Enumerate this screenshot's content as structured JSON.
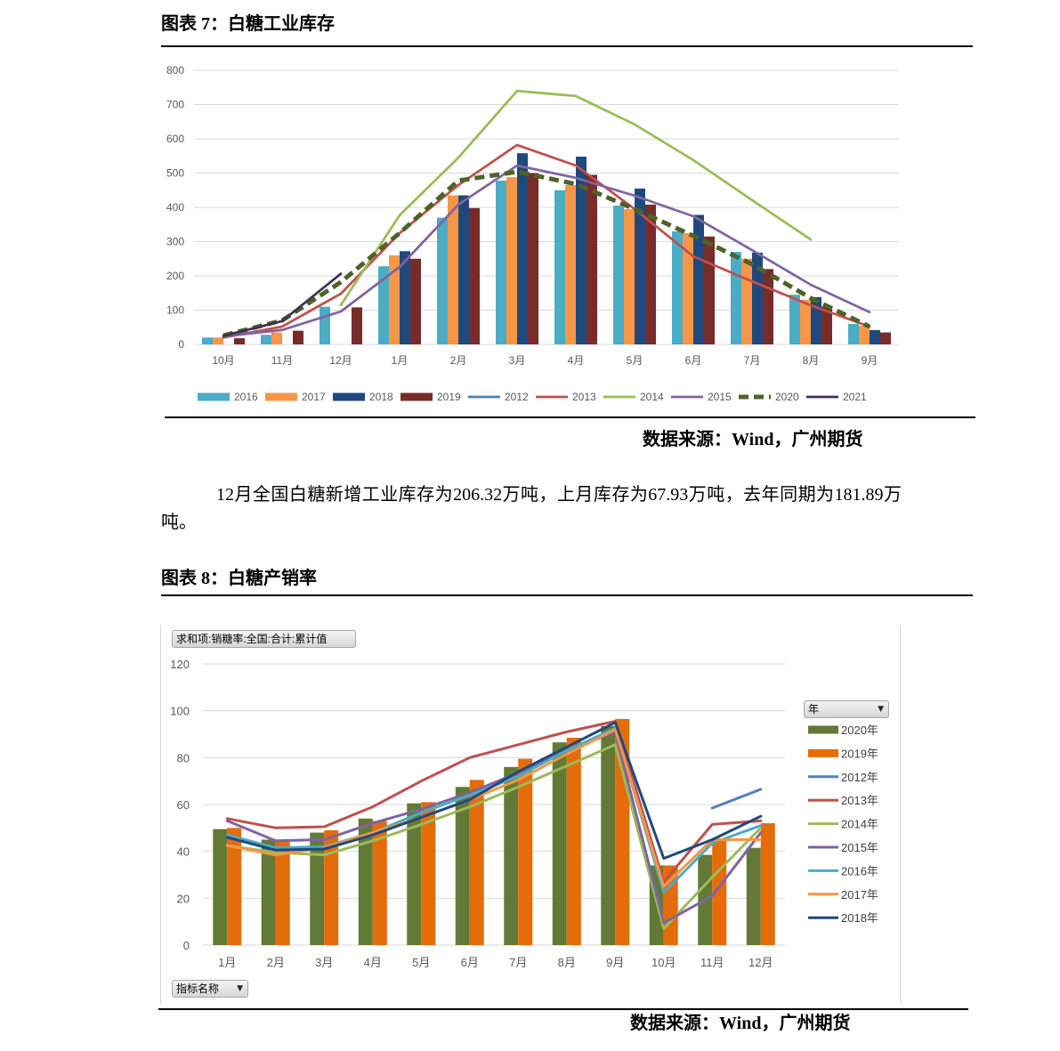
{
  "chart_data": [
    {
      "type": "bar",
      "title": "图表 7：白糖工业库存",
      "source": "数据来源：Wind，广州期货",
      "categories": [
        "10月",
        "11月",
        "12月",
        "1月",
        "2月",
        "3月",
        "4月",
        "5月",
        "6月",
        "7月",
        "8月",
        "9月"
      ],
      "ylim": [
        0,
        800
      ],
      "yticks": [
        0,
        100,
        200,
        300,
        400,
        500,
        600,
        700,
        800
      ],
      "grid": true,
      "legend_position": "bottom",
      "bar_series": [
        {
          "name": "2016",
          "color": "#4BACC6",
          "values": [
            20,
            28,
            110,
            228,
            370,
            478,
            450,
            405,
            330,
            270,
            145,
            60
          ]
        },
        {
          "name": "2017",
          "color": "#F79646",
          "values": [
            20,
            35,
            null,
            260,
            435,
            488,
            465,
            395,
            325,
            250,
            130,
            55
          ]
        },
        {
          "name": "2018",
          "color": "#1F497D",
          "values": [
            null,
            null,
            null,
            272,
            435,
            558,
            548,
            455,
            378,
            268,
            138,
            42
          ]
        },
        {
          "name": "2019",
          "color": "#772C2A",
          "values": [
            18,
            40,
            108,
            250,
            398,
            500,
            495,
            408,
            315,
            220,
            110,
            35
          ]
        }
      ],
      "line_series": [
        {
          "name": "2012",
          "color": "#4F81BD",
          "dashed": false,
          "values": [
            null,
            null,
            null,
            null,
            null,
            null,
            null,
            null,
            null,
            null,
            null,
            null
          ]
        },
        {
          "name": "2013",
          "color": "#C0504D",
          "dashed": false,
          "values": [
            20,
            52,
            148,
            325,
            465,
            582,
            522,
            395,
            257,
            184,
            114,
            52
          ]
        },
        {
          "name": "2014",
          "color": "#9BBB59",
          "dashed": false,
          "values": [
            null,
            null,
            115,
            377,
            545,
            740,
            725,
            642,
            538,
            421,
            306,
            null
          ]
        },
        {
          "name": "2015",
          "color": "#8064A2",
          "dashed": false,
          "values": [
            23,
            42,
            96,
            226,
            408,
            522,
            486,
            434,
            374,
            275,
            174,
            94
          ]
        },
        {
          "name": "2020",
          "color": "#4F6228",
          "dashed": true,
          "values": [
            26,
            70,
            181.89,
            325,
            478,
            504,
            468,
            395,
            317,
            234,
            135,
            52
          ]
        },
        {
          "name": "2021",
          "color": "#403152",
          "dashed": false,
          "values": [
            25,
            67.93,
            206.32,
            null,
            null,
            null,
            null,
            null,
            null,
            null,
            null,
            null
          ]
        }
      ]
    },
    {
      "type": "bar",
      "title": "图表 8：白糖产销率",
      "source": "数据来源：Wind，广州期货",
      "pivot": {
        "value_field": "求和项:销糖率:全国:合计:累计值",
        "legend_field": "年",
        "axis_field": "指标名称"
      },
      "categories": [
        "1月",
        "2月",
        "3月",
        "4月",
        "5月",
        "6月",
        "7月",
        "8月",
        "9月",
        "10月",
        "11月",
        "12月"
      ],
      "ylim": [
        0,
        120
      ],
      "yticks": [
        0,
        20,
        40,
        60,
        80,
        100,
        120
      ],
      "grid": true,
      "legend_position": "right",
      "bar_series": [
        {
          "name": "2020年",
          "color": "#627A35",
          "values": [
            49.5,
            45,
            48,
            54,
            60.5,
            67.5,
            76,
            86.5,
            93.5,
            34,
            38.5,
            41.5
          ]
        },
        {
          "name": "2019年",
          "color": "#E46C0A",
          "values": [
            50,
            45,
            49,
            53,
            61,
            70.5,
            79.5,
            88.5,
            96.5,
            34,
            45,
            52
          ]
        }
      ],
      "line_series": [
        {
          "name": "2012年",
          "color": "#4F81BD",
          "dashed": false,
          "values": [
            null,
            null,
            null,
            null,
            null,
            null,
            null,
            null,
            null,
            null,
            58.5,
            66.5
          ]
        },
        {
          "name": "2013年",
          "color": "#C0504D",
          "dashed": false,
          "values": [
            54,
            50,
            50.5,
            59,
            70,
            80,
            85.5,
            91,
            95.5,
            27,
            51.5,
            53
          ]
        },
        {
          "name": "2014年",
          "color": "#9BBB59",
          "dashed": false,
          "values": [
            42.5,
            39.5,
            38.5,
            44.5,
            51.5,
            59,
            67.5,
            76.5,
            85.5,
            7,
            29,
            50
          ]
        },
        {
          "name": "2015年",
          "color": "#8064A2",
          "dashed": false,
          "values": [
            53,
            44.5,
            45,
            52,
            58,
            65,
            73.5,
            83,
            91,
            9.5,
            21,
            48
          ]
        },
        {
          "name": "2016年",
          "color": "#4BACC6",
          "dashed": false,
          "values": [
            47,
            41.5,
            42,
            48,
            56.5,
            64,
            72,
            83,
            92.5,
            22.5,
            43.5,
            51
          ]
        },
        {
          "name": "2017年",
          "color": "#F79646",
          "dashed": false,
          "values": [
            42.5,
            38.5,
            41.5,
            48,
            54.5,
            62,
            70.5,
            81.5,
            92,
            25,
            45,
            45
          ]
        },
        {
          "name": "2018年",
          "color": "#1F497D",
          "dashed": false,
          "values": [
            46,
            40.5,
            41,
            47,
            54.5,
            62,
            74,
            84.5,
            95,
            37,
            45,
            55
          ]
        }
      ]
    }
  ],
  "body_text": {
    "paragraph": "12月全国白糖新增工业库存为206.32万吨，上月库存为67.93万吨，去年同期为181.89万吨。"
  }
}
